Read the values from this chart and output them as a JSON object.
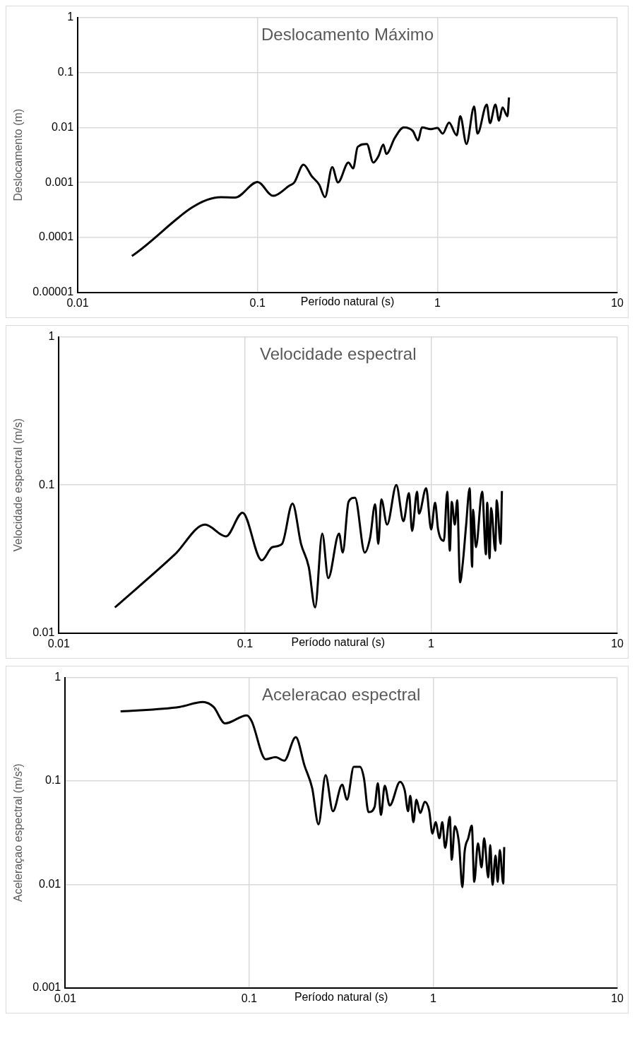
{
  "chart_data": [
    {
      "type": "line",
      "title": "Deslocamento Máximo",
      "xlabel": "Período natural (s)",
      "ylabel": "Deslocamento (m)",
      "log": "xy",
      "grid": true,
      "legend": false,
      "marker": "none",
      "xlim": [
        0.01,
        10
      ],
      "xticks": [
        0.01,
        0.1,
        1,
        10
      ],
      "ylim": [
        1e-05,
        1
      ],
      "yticks": [
        {
          "value": 1e-05,
          "label": "0.00001"
        },
        0.0001,
        0.001,
        0.01,
        0.1,
        1
      ],
      "series": [
        {
          "color": "#000000",
          "x": [
            0.02,
            0.0625,
            0.075,
            0.1,
            0.122,
            0.15,
            0.16,
            0.18,
            0.2,
            0.22,
            0.237,
            0.26,
            0.28,
            0.32,
            0.34,
            0.36,
            0.405,
            0.44,
            0.47,
            0.5,
            0.52,
            0.58,
            0.65,
            0.73,
            0.78,
            0.82,
            0.92,
            1.0,
            1.07,
            1.16,
            1.28,
            1.34,
            1.45,
            1.6,
            1.67,
            1.88,
            1.96,
            2.1,
            2.2,
            2.3,
            2.45,
            2.5
          ],
          "values": [
            4.6e-05,
            0.00054,
            0.00053,
            0.00102,
            0.00057,
            0.00087,
            0.001,
            0.0021,
            0.0013,
            0.00091,
            0.00054,
            0.0019,
            0.001,
            0.0023,
            0.0018,
            0.0044,
            0.005,
            0.0023,
            0.003,
            0.0049,
            0.0033,
            0.0065,
            0.01,
            0.0086,
            0.0058,
            0.01,
            0.0093,
            0.0098,
            0.0077,
            0.0122,
            0.0072,
            0.016,
            0.005,
            0.024,
            0.0077,
            0.026,
            0.012,
            0.026,
            0.0133,
            0.023,
            0.016,
            0.035
          ]
        }
      ]
    },
    {
      "type": "line",
      "title": "Velocidade espectral",
      "xlabel": "Período natural (s)",
      "ylabel": "Velocidade espectral (m/s)",
      "log": "xy",
      "grid": true,
      "legend": false,
      "marker": "none",
      "xlim": [
        0.01,
        10
      ],
      "xticks": [
        0.01,
        0.1,
        1,
        10
      ],
      "ylim": [
        0.01,
        1
      ],
      "yticks": [
        0.01,
        0.1,
        1
      ],
      "series": [
        {
          "color": "#000000",
          "x": [
            0.02,
            0.042,
            0.061,
            0.079,
            0.097,
            0.123,
            0.14,
            0.158,
            0.18,
            0.2,
            0.22,
            0.238,
            0.26,
            0.28,
            0.32,
            0.335,
            0.36,
            0.39,
            0.44,
            0.47,
            0.5,
            0.52,
            0.54,
            0.58,
            0.65,
            0.71,
            0.76,
            0.79,
            0.84,
            0.86,
            0.94,
            1.0,
            1.05,
            1.09,
            1.17,
            1.22,
            1.26,
            1.29,
            1.34,
            1.38,
            1.43,
            1.48,
            1.54,
            1.61,
            1.66,
            1.68,
            1.74,
            1.88,
            1.97,
            2.0,
            2.06,
            2.1,
            2.21,
            2.25,
            2.36,
            2.4
          ],
          "values": [
            0.0149,
            0.034,
            0.054,
            0.045,
            0.065,
            0.031,
            0.038,
            0.04,
            0.075,
            0.04,
            0.028,
            0.0149,
            0.047,
            0.0235,
            0.047,
            0.035,
            0.077,
            0.082,
            0.035,
            0.044,
            0.074,
            0.04,
            0.08,
            0.054,
            0.1,
            0.057,
            0.088,
            0.049,
            0.09,
            0.064,
            0.095,
            0.05,
            0.076,
            0.05,
            0.042,
            0.09,
            0.036,
            0.077,
            0.054,
            0.079,
            0.022,
            0.03,
            0.053,
            0.095,
            0.028,
            0.068,
            0.038,
            0.09,
            0.034,
            0.076,
            0.032,
            0.07,
            0.036,
            0.079,
            0.04,
            0.091
          ]
        }
      ]
    },
    {
      "type": "line",
      "title": "Aceleracao espectral",
      "xlabel": "Período natural (s)",
      "ylabel": "Aceleraçao espectral (m/s²)",
      "log": "xy",
      "grid": true,
      "legend": false,
      "marker": "none",
      "xlim": [
        0.01,
        10
      ],
      "xticks": [
        0.01,
        0.1,
        1,
        10
      ],
      "ylim": [
        0.001,
        1
      ],
      "yticks": [
        0.001,
        0.01,
        0.1,
        1
      ],
      "series": [
        {
          "color": "#000000",
          "x": [
            0.02,
            0.042,
            0.056,
            0.064,
            0.074,
            0.097,
            0.103,
            0.123,
            0.139,
            0.155,
            0.179,
            0.2,
            0.22,
            0.238,
            0.26,
            0.285,
            0.32,
            0.34,
            0.37,
            0.4,
            0.42,
            0.445,
            0.48,
            0.5,
            0.52,
            0.545,
            0.58,
            0.66,
            0.7,
            0.73,
            0.75,
            0.78,
            0.81,
            0.85,
            0.9,
            0.95,
            0.99,
            1.03,
            1.08,
            1.12,
            1.16,
            1.23,
            1.26,
            1.31,
            1.38,
            1.44,
            1.48,
            1.55,
            1.62,
            1.67,
            1.75,
            1.83,
            1.89,
            1.99,
            2.04,
            2.1,
            2.18,
            2.24,
            2.3,
            2.4,
            2.43
          ],
          "values": [
            0.47,
            0.52,
            0.58,
            0.52,
            0.36,
            0.43,
            0.38,
            0.162,
            0.17,
            0.157,
            0.265,
            0.14,
            0.085,
            0.038,
            0.114,
            0.051,
            0.092,
            0.066,
            0.137,
            0.137,
            0.107,
            0.05,
            0.056,
            0.095,
            0.047,
            0.09,
            0.058,
            0.098,
            0.081,
            0.051,
            0.072,
            0.04,
            0.066,
            0.049,
            0.063,
            0.052,
            0.031,
            0.04,
            0.028,
            0.04,
            0.0226,
            0.045,
            0.0173,
            0.0365,
            0.025,
            0.0094,
            0.0205,
            0.028,
            0.037,
            0.0106,
            0.025,
            0.0146,
            0.028,
            0.0117,
            0.024,
            0.0099,
            0.019,
            0.0106,
            0.0215,
            0.0102,
            0.023
          ]
        }
      ]
    }
  ]
}
